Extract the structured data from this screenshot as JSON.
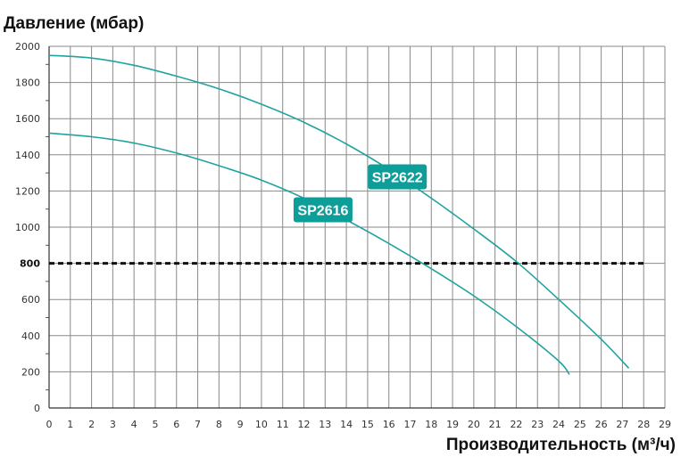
{
  "chart_data": {
    "type": "line",
    "ylabel": "Давление (мбар)",
    "xlabel": "Производительность (м³/ч)",
    "xlim": [
      0,
      29
    ],
    "ylim": [
      0,
      2000
    ],
    "x_ticks": [
      "0",
      "1",
      "2",
      "3",
      "4",
      "5",
      "6",
      "7",
      "8",
      "9",
      "10",
      "11",
      "12",
      "13",
      "14",
      "15",
      "16",
      "17",
      "18",
      "19",
      "20",
      "21",
      "22",
      "23",
      "24",
      "25",
      "26",
      "27",
      "28",
      "29"
    ],
    "y_ticks": [
      "0",
      "200",
      "400",
      "600",
      "800",
      "1000",
      "1200",
      "1400",
      "1600",
      "1800",
      "2000"
    ],
    "grid": true,
    "accent_color": "#1fa3a0",
    "label_color": "#0e9e9a",
    "reference_line": {
      "y": 800,
      "x_range": [
        0,
        28
      ],
      "style": "dashed",
      "color": "#111111"
    },
    "series": [
      {
        "name": "SP2622",
        "x": [
          0,
          2,
          4,
          6,
          8,
          10,
          12,
          14,
          16,
          18,
          20,
          22,
          24,
          26,
          27.3
        ],
        "y": [
          1950,
          1935,
          1895,
          1835,
          1765,
          1680,
          1580,
          1460,
          1320,
          1160,
          990,
          810,
          600,
          380,
          220
        ]
      },
      {
        "name": "SP2616",
        "x": [
          0,
          2,
          4,
          6,
          8,
          10,
          12,
          14,
          16,
          18,
          20,
          22,
          24,
          24.5
        ],
        "y": [
          1520,
          1500,
          1465,
          1410,
          1340,
          1260,
          1160,
          1040,
          910,
          770,
          620,
          450,
          260,
          185
        ]
      }
    ]
  }
}
